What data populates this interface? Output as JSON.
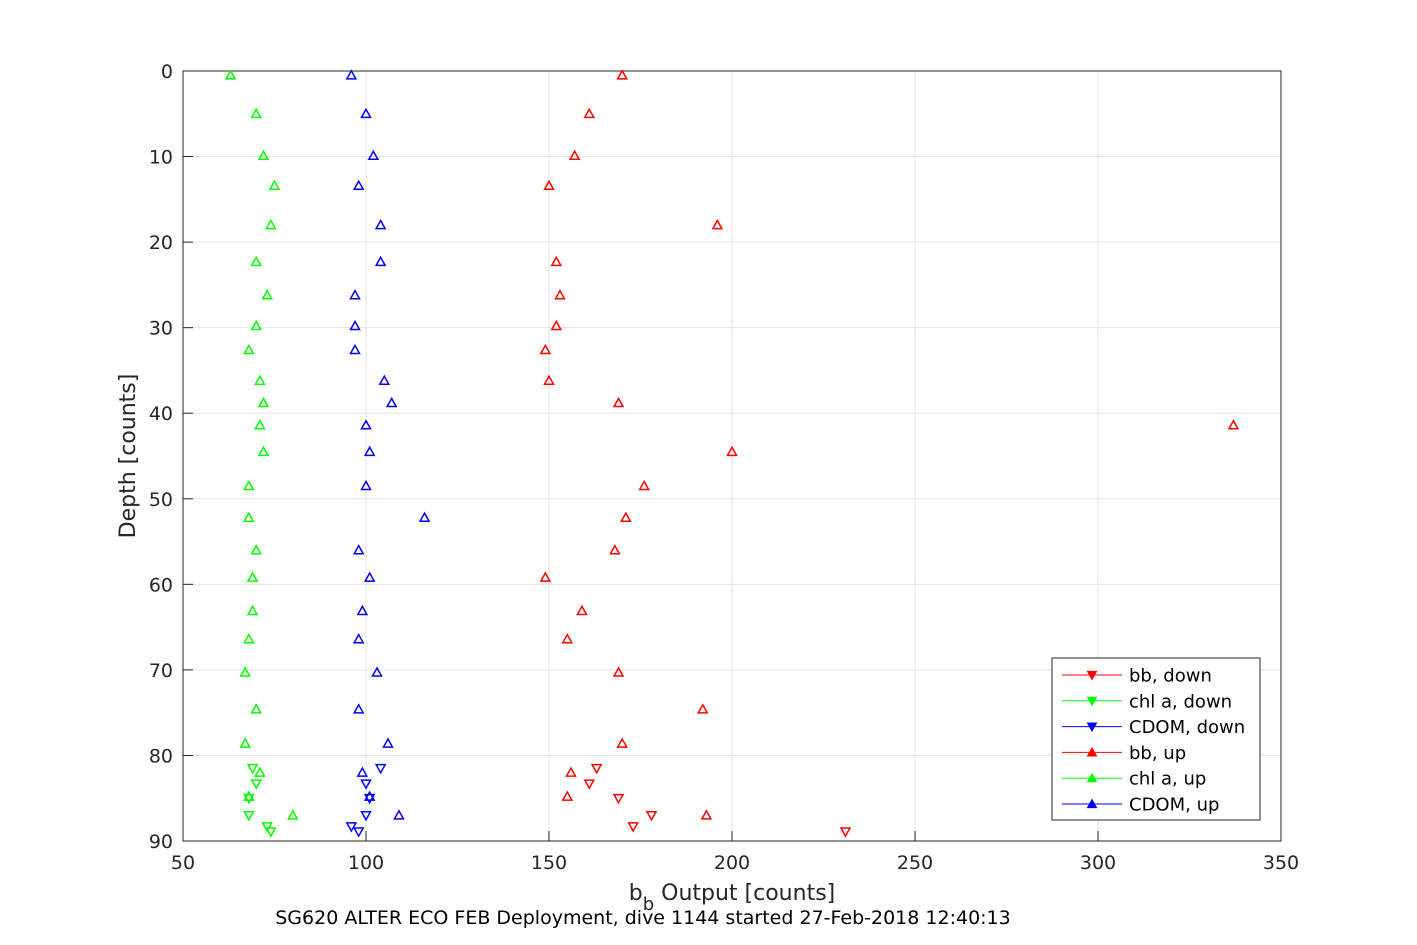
{
  "chart_data": {
    "type": "scatter",
    "title": "",
    "caption": "SG620 ALTER ECO FEB Deployment, dive 1144 started 27-Feb-2018 12:40:13",
    "xlabel_main": "b",
    "xlabel_sub": "b",
    "xlabel_rest": " Output [counts]",
    "ylabel": "Depth [counts]",
    "xlim": [
      50,
      350
    ],
    "ylim": [
      0,
      90
    ],
    "y_reversed": true,
    "grid": true,
    "legend_position": "bottom-right",
    "xticks": [
      "50",
      "100",
      "150",
      "200",
      "250",
      "300",
      "350"
    ],
    "yticks": [
      "0",
      "10",
      "20",
      "30",
      "40",
      "50",
      "60",
      "70",
      "80",
      "90"
    ],
    "series": [
      {
        "name": "bb, down",
        "color": "#ff0000",
        "marker": "triangle-down",
        "points": [
          [
            163,
            81.5
          ],
          [
            161,
            83.3
          ],
          [
            169,
            85
          ],
          [
            178,
            87
          ],
          [
            173,
            88.3
          ],
          [
            231,
            88.9
          ]
        ]
      },
      {
        "name": "chl a, down",
        "color": "#00ff00",
        "marker": "triangle-down",
        "points": [
          [
            69,
            81.5
          ],
          [
            70,
            83.3
          ],
          [
            68,
            85
          ],
          [
            68,
            87
          ],
          [
            73,
            88.3
          ],
          [
            74,
            88.9
          ]
        ]
      },
      {
        "name": "CDOM, down",
        "color": "#0000ff",
        "marker": "triangle-down",
        "points": [
          [
            104,
            81.5
          ],
          [
            100,
            83.3
          ],
          [
            101,
            85
          ],
          [
            100,
            87
          ],
          [
            96,
            88.3
          ],
          [
            98,
            88.9
          ]
        ]
      },
      {
        "name": "bb, up",
        "color": "#ff0000",
        "marker": "triangle-up",
        "points": [
          [
            170,
            0.5
          ],
          [
            161,
            5
          ],
          [
            157,
            9.9
          ],
          [
            150,
            13.4
          ],
          [
            196,
            18
          ],
          [
            152,
            22.3
          ],
          [
            153,
            26.2
          ],
          [
            152,
            29.8
          ],
          [
            149,
            32.6
          ],
          [
            150,
            36.2
          ],
          [
            169,
            38.8
          ],
          [
            337,
            41.4
          ],
          [
            200,
            44.5
          ],
          [
            176,
            48.5
          ],
          [
            171,
            52.2
          ],
          [
            168,
            56
          ],
          [
            149,
            59.2
          ],
          [
            159,
            63.1
          ],
          [
            155,
            66.4
          ],
          [
            169,
            70.3
          ],
          [
            192,
            74.6
          ],
          [
            170,
            78.6
          ],
          [
            156,
            82
          ],
          [
            155,
            84.8
          ],
          [
            193,
            87
          ]
        ]
      },
      {
        "name": "chl a, up",
        "color": "#00ff00",
        "marker": "triangle-up",
        "points": [
          [
            63,
            0.5
          ],
          [
            70,
            5
          ],
          [
            72,
            9.9
          ],
          [
            75,
            13.4
          ],
          [
            74,
            18
          ],
          [
            70,
            22.3
          ],
          [
            73,
            26.2
          ],
          [
            70,
            29.8
          ],
          [
            68,
            32.6
          ],
          [
            71,
            36.2
          ],
          [
            72,
            38.8
          ],
          [
            71,
            41.4
          ],
          [
            72,
            44.5
          ],
          [
            68,
            48.5
          ],
          [
            68,
            52.2
          ],
          [
            70,
            56
          ],
          [
            69,
            59.2
          ],
          [
            69,
            63.1
          ],
          [
            68,
            66.4
          ],
          [
            67,
            70.3
          ],
          [
            70,
            74.6
          ],
          [
            67,
            78.6
          ],
          [
            71,
            82
          ],
          [
            68,
            84.8
          ],
          [
            80,
            87
          ]
        ]
      },
      {
        "name": "CDOM, up",
        "color": "#0000ff",
        "marker": "triangle-up",
        "points": [
          [
            96,
            0.5
          ],
          [
            100,
            5
          ],
          [
            102,
            9.9
          ],
          [
            98,
            13.4
          ],
          [
            104,
            18
          ],
          [
            104,
            22.3
          ],
          [
            97,
            26.2
          ],
          [
            97,
            29.8
          ],
          [
            97,
            32.6
          ],
          [
            105,
            36.2
          ],
          [
            107,
            38.8
          ],
          [
            100,
            41.4
          ],
          [
            101,
            44.5
          ],
          [
            100,
            48.5
          ],
          [
            116,
            52.2
          ],
          [
            98,
            56
          ],
          [
            101,
            59.2
          ],
          [
            99,
            63.1
          ],
          [
            98,
            66.4
          ],
          [
            103,
            70.3
          ],
          [
            98,
            74.6
          ],
          [
            106,
            78.6
          ],
          [
            99,
            82
          ],
          [
            101,
            84.8
          ],
          [
            109,
            87
          ]
        ]
      }
    ]
  }
}
